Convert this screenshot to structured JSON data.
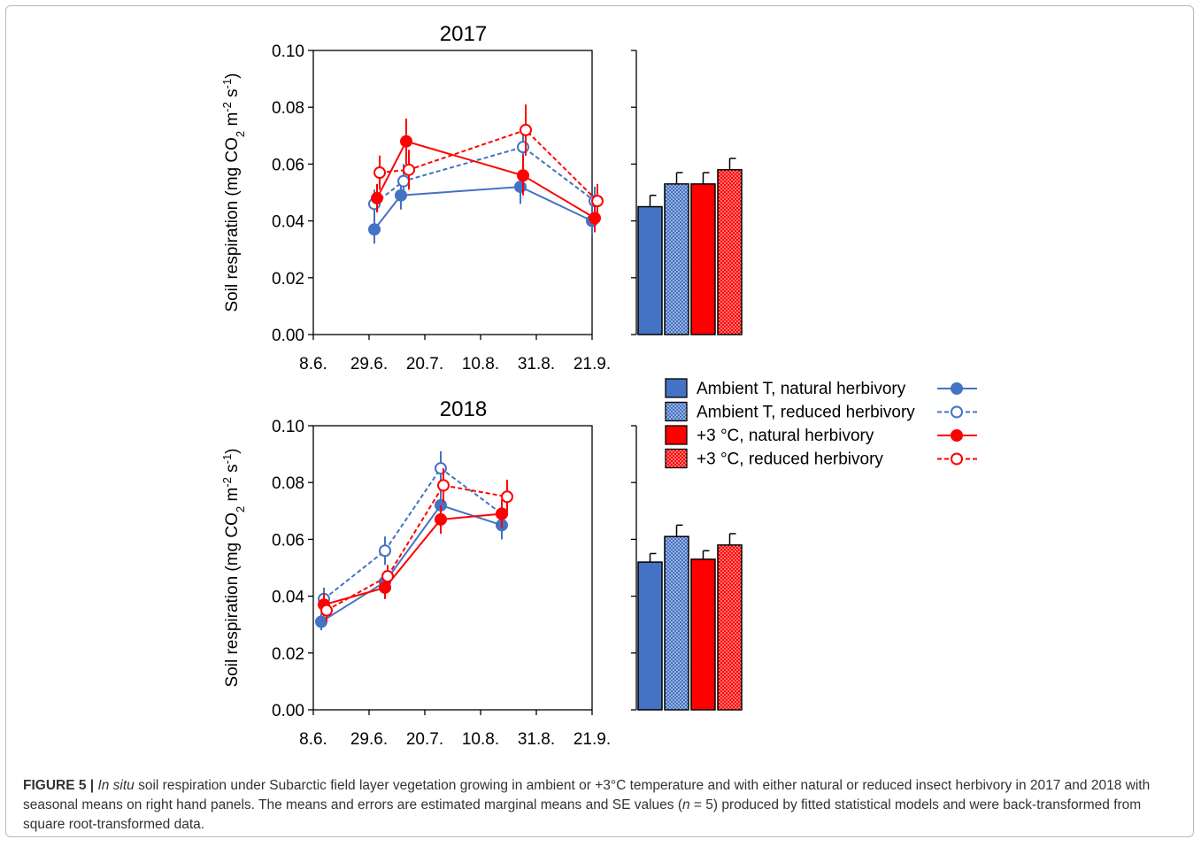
{
  "figure": {
    "caption_label": "FIGURE 5 |",
    "caption_italic_1": "In situ",
    "caption_text_1": " soil respiration under Subarctic field layer vegetation growing in ambient or +3°C temperature and with either natural or reduced insect herbivory in 2017 and 2018 with seasonal means on right hand panels. The means and errors are estimated marginal means and SE values (",
    "caption_italic_2": "n",
    "caption_text_2": " = 5) produced by fitted statistical models and were back-transformed from square root-transformed data."
  },
  "legend": [
    {
      "label": "Ambient T, natural herbivory",
      "color": "#4472C4",
      "fill": "solid",
      "line": "solid",
      "marker": "filled"
    },
    {
      "label": "Ambient T, reduced herbivory",
      "color": "#4472C4",
      "fill": "dotted",
      "line": "dashed",
      "marker": "open"
    },
    {
      "label": "+3 °C, natural herbivory",
      "color": "#FF0000",
      "fill": "solid",
      "line": "solid",
      "marker": "filled"
    },
    {
      "label": "+3 °C, reduced herbivory",
      "color": "#FF0000",
      "fill": "dotted",
      "line": "dashed",
      "marker": "open"
    }
  ],
  "chart_data": [
    {
      "type": "line",
      "title": "2017",
      "ylabel": "Soil respiration (mg CO2 m-2 s-1)",
      "ylim": [
        0,
        0.1
      ],
      "xlim": [
        "2017-06-08",
        "2017-09-21"
      ],
      "x_ticks": [
        "8.6.",
        "29.6.",
        "20.7.",
        "10.8.",
        "31.8.",
        "21.9."
      ],
      "y_ticks": [
        "0.00",
        "0.02",
        "0.04",
        "0.06",
        "0.08",
        "0.10"
      ],
      "series": [
        {
          "name": "Ambient T, natural herbivory",
          "x": [
            "2017-07-01",
            "2017-07-11",
            "2017-08-25",
            "2017-09-21"
          ],
          "y": [
            0.037,
            0.049,
            0.052,
            0.04
          ],
          "err": [
            0.005,
            0.005,
            0.006,
            0.005
          ]
        },
        {
          "name": "Ambient T, reduced herbivory",
          "x": [
            "2017-07-01",
            "2017-07-12",
            "2017-08-26",
            "2017-09-22"
          ],
          "y": [
            0.046,
            0.054,
            0.066,
            0.047
          ],
          "err": [
            0.005,
            0.006,
            0.007,
            0.005
          ]
        },
        {
          "name": "+3 °C, natural herbivory",
          "x": [
            "2017-07-02",
            "2017-07-13",
            "2017-08-26",
            "2017-09-22"
          ],
          "y": [
            0.048,
            0.068,
            0.056,
            0.041
          ],
          "err": [
            0.005,
            0.008,
            0.007,
            0.005
          ]
        },
        {
          "name": "+3 °C, reduced herbivory",
          "x": [
            "2017-07-03",
            "2017-07-14",
            "2017-08-27",
            "2017-09-23"
          ],
          "y": [
            0.057,
            0.058,
            0.072,
            0.047
          ],
          "err": [
            0.006,
            0.007,
            0.009,
            0.006
          ]
        }
      ],
      "seasonal_means": [
        {
          "name": "Ambient T, natural herbivory",
          "value": 0.045,
          "err": 0.004
        },
        {
          "name": "Ambient T, reduced herbivory",
          "value": 0.053,
          "err": 0.004
        },
        {
          "name": "+3 °C, natural herbivory",
          "value": 0.053,
          "err": 0.004
        },
        {
          "name": "+3 °C, reduced herbivory",
          "value": 0.058,
          "err": 0.004
        }
      ]
    },
    {
      "type": "line",
      "title": "2018",
      "ylabel": "Soil respiration (mg CO2 m-2 s-1)",
      "ylim": [
        0,
        0.1
      ],
      "xlim": [
        "2018-06-08",
        "2018-09-21"
      ],
      "x_ticks": [
        "8.6.",
        "29.6.",
        "20.7.",
        "10.8.",
        "31.8.",
        "21.9."
      ],
      "y_ticks": [
        "0.00",
        "0.02",
        "0.04",
        "0.06",
        "0.08",
        "0.10"
      ],
      "series": [
        {
          "name": "Ambient T, natural herbivory",
          "x": [
            "2018-06-11",
            "2018-07-05",
            "2018-07-26",
            "2018-08-18"
          ],
          "y": [
            0.031,
            0.045,
            0.072,
            0.065
          ],
          "err": [
            0.003,
            0.004,
            0.005,
            0.005
          ]
        },
        {
          "name": "Ambient T, reduced herbivory",
          "x": [
            "2018-06-12",
            "2018-07-05",
            "2018-07-26",
            "2018-08-18"
          ],
          "y": [
            0.039,
            0.056,
            0.085,
            0.069
          ],
          "err": [
            0.004,
            0.005,
            0.006,
            0.005
          ]
        },
        {
          "name": "+3 °C, natural herbivory",
          "x": [
            "2018-06-12",
            "2018-07-05",
            "2018-07-26",
            "2018-08-18"
          ],
          "y": [
            0.037,
            0.043,
            0.067,
            0.069
          ],
          "err": [
            0.004,
            0.004,
            0.005,
            0.005
          ]
        },
        {
          "name": "+3 °C, reduced herbivory",
          "x": [
            "2018-06-13",
            "2018-07-06",
            "2018-07-27",
            "2018-08-20"
          ],
          "y": [
            0.035,
            0.047,
            0.079,
            0.075
          ],
          "err": [
            0.004,
            0.004,
            0.006,
            0.006
          ]
        }
      ],
      "seasonal_means": [
        {
          "name": "Ambient T, natural herbivory",
          "value": 0.052,
          "err": 0.003
        },
        {
          "name": "Ambient T, reduced herbivory",
          "value": 0.061,
          "err": 0.004
        },
        {
          "name": "+3 °C, natural herbivory",
          "value": 0.053,
          "err": 0.003
        },
        {
          "name": "+3 °C, reduced herbivory",
          "value": 0.058,
          "err": 0.004
        }
      ]
    }
  ]
}
